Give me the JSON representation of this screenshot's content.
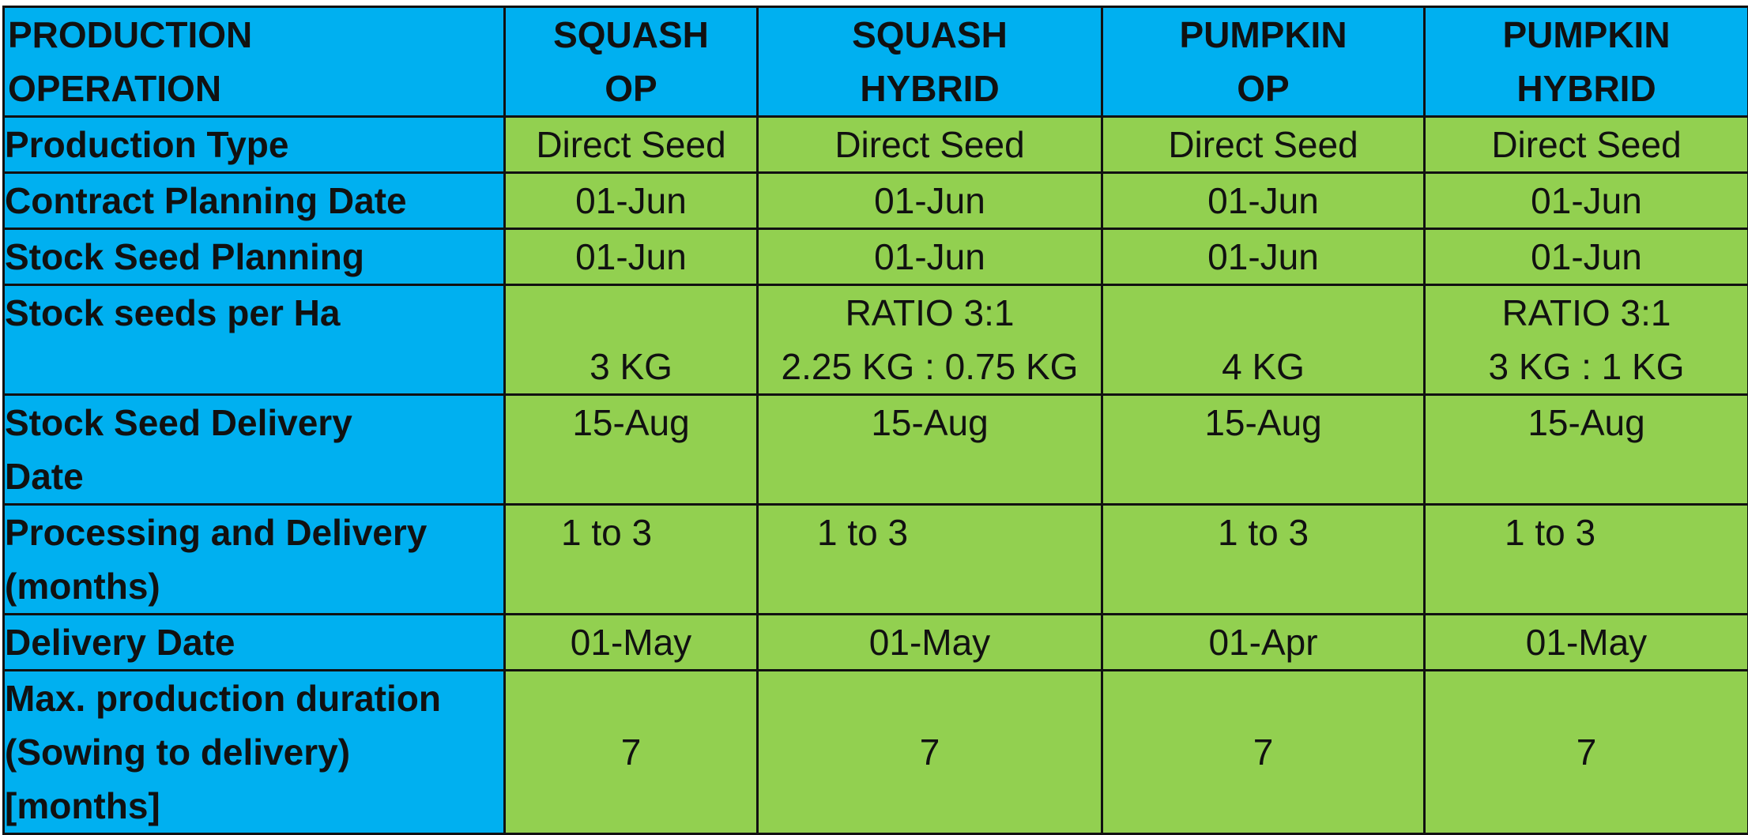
{
  "colors": {
    "header_bg": "#00b0f0",
    "label_bg": "#00b0f0",
    "value_bg": "#92d050",
    "grid": "#111111"
  },
  "header": {
    "col0": [
      "PRODUCTION",
      "OPERATION"
    ],
    "col1": [
      "SQUASH",
      "OP"
    ],
    "col2": [
      "SQUASH",
      "HYBRID"
    ],
    "col3": [
      "PUMPKIN",
      "OP"
    ],
    "col4": [
      "PUMPKIN",
      "HYBRID"
    ]
  },
  "rows": {
    "production_type": {
      "label": [
        "Production Type"
      ],
      "values": [
        "Direct Seed",
        "Direct Seed",
        "Direct Seed",
        "Direct Seed"
      ]
    },
    "contract_planning_date": {
      "label": [
        "Contract Planning Date"
      ],
      "values": [
        "01-Jun",
        "01-Jun",
        "01-Jun",
        "01-Jun"
      ]
    },
    "stock_seed_planning": {
      "label": [
        "Stock Seed Planning"
      ],
      "values": [
        "01-Jun",
        "01-Jun",
        "01-Jun",
        "01-Jun"
      ]
    },
    "stock_seeds_per_ha": {
      "label": [
        "Stock seeds per Ha"
      ],
      "values": [
        [
          "3 KG"
        ],
        [
          "RATIO 3:1",
          "2.25 KG : 0.75 KG"
        ],
        [
          "4 KG"
        ],
        [
          "RATIO 3:1",
          "3 KG : 1 KG"
        ]
      ]
    },
    "stock_seed_delivery_date": {
      "label": [
        "Stock Seed Delivery",
        "Date"
      ],
      "values": [
        "15-Aug",
        "15-Aug",
        "15-Aug",
        "15-Aug"
      ]
    },
    "processing_and_delivery": {
      "label": [
        "Processing and Delivery",
        "(months)"
      ],
      "values": [
        "1 to 3",
        "1 to 3",
        "1 to 3",
        "1 to 3"
      ]
    },
    "delivery_date": {
      "label": [
        "Delivery Date"
      ],
      "values": [
        "01-May",
        "01-May",
        "01-Apr",
        "01-May"
      ]
    },
    "max_production_duration": {
      "label": [
        "Max. production duration",
        "(Sowing to delivery)",
        "[months]"
      ],
      "values": [
        "7",
        "7",
        "7",
        "7"
      ]
    }
  }
}
